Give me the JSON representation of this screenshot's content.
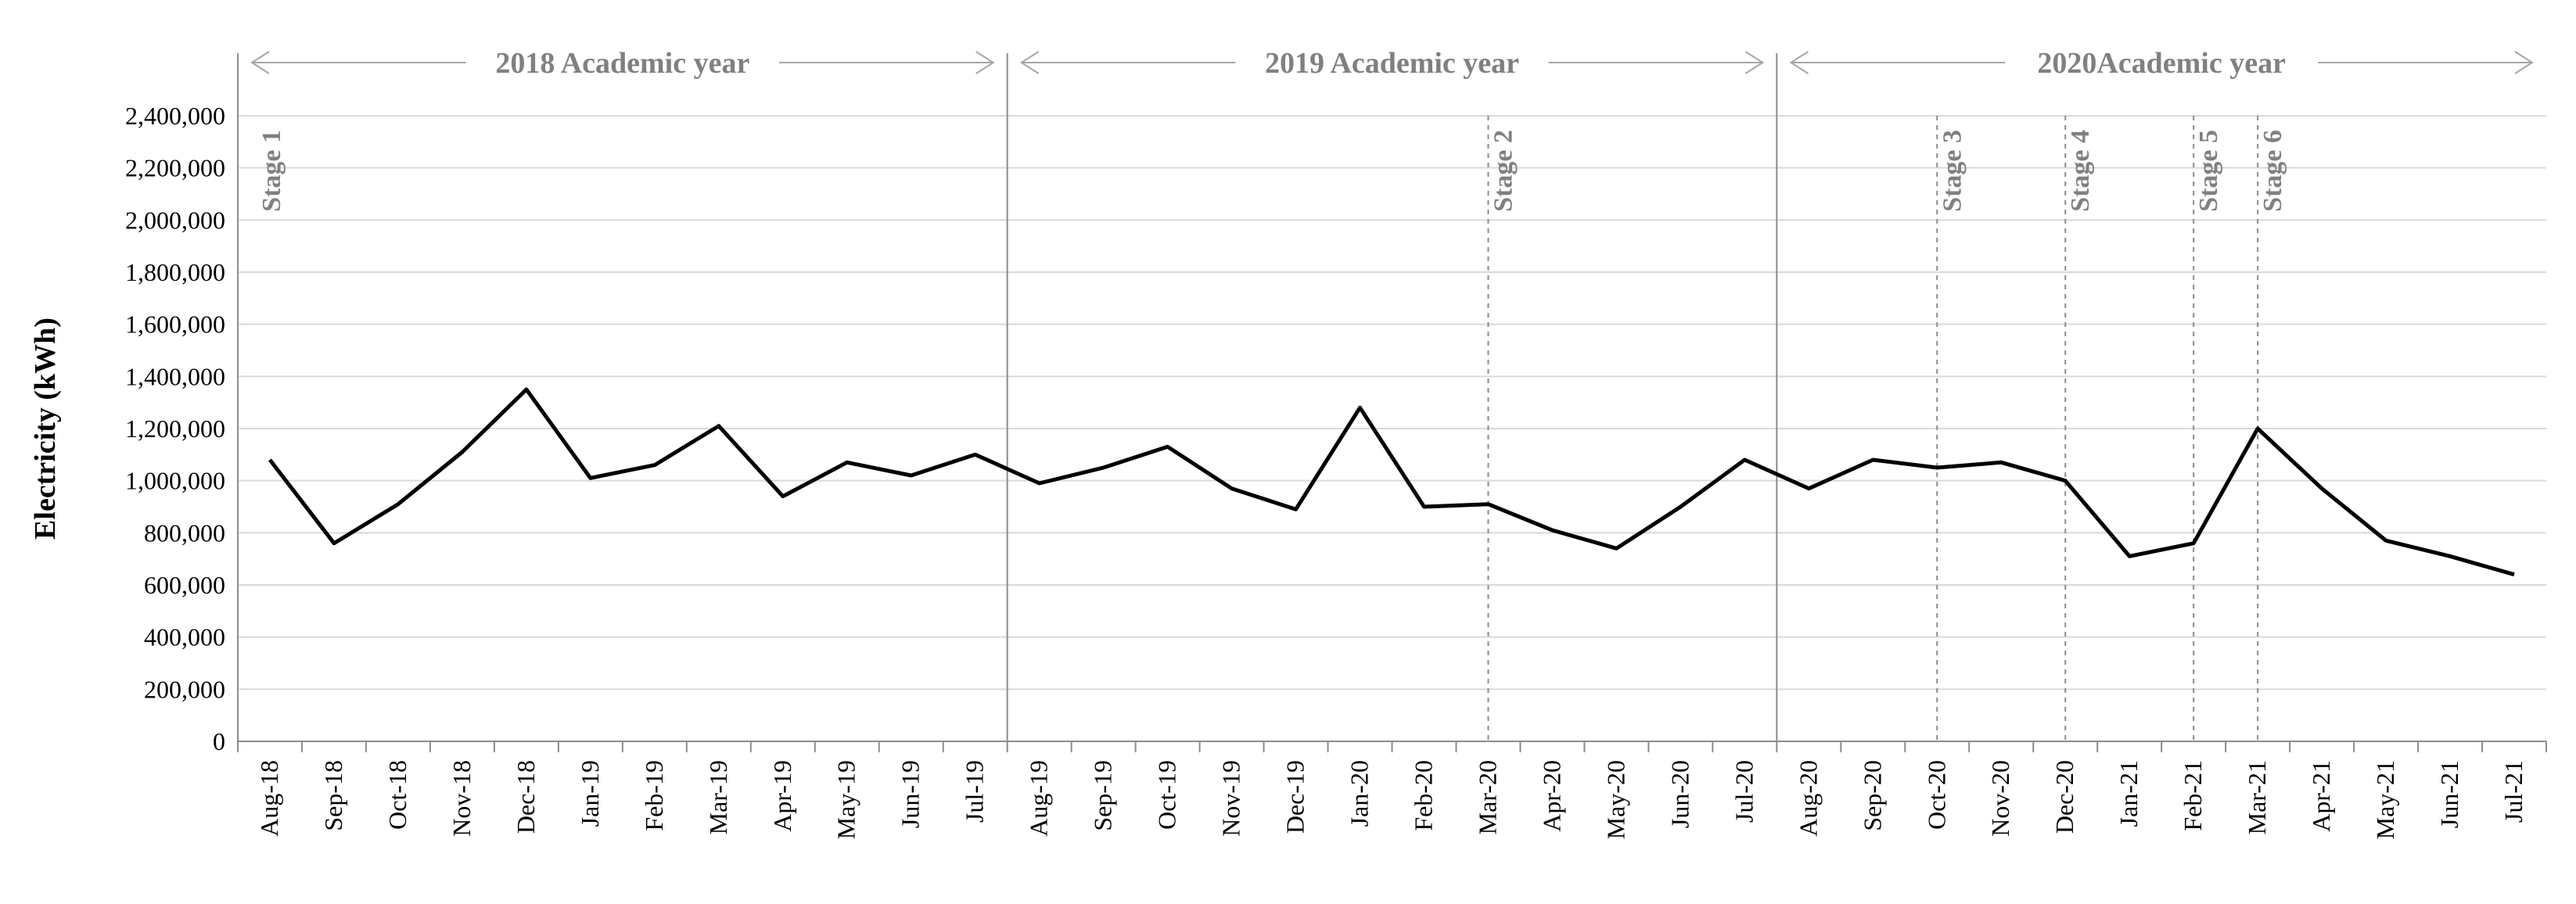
{
  "chart_data": {
    "type": "line",
    "title": "",
    "xlabel": "",
    "ylabel": "Electricity (kWh)",
    "ylim": [
      0,
      2400000
    ],
    "yticks": [
      0,
      200000,
      400000,
      600000,
      800000,
      1000000,
      1200000,
      1400000,
      1600000,
      1800000,
      2000000,
      2200000,
      2400000
    ],
    "ytick_labels": [
      "0",
      "200,000",
      "400,000",
      "600,000",
      "800,000",
      "1,000,000",
      "1,200,000",
      "1,400,000",
      "1,600,000",
      "1,800,000",
      "2,000,000",
      "2,200,000",
      "2,400,000"
    ],
    "grid": true,
    "categories": [
      "Aug-18",
      "Sep-18",
      "Oct-18",
      "Nov-18",
      "Dec-18",
      "Jan-19",
      "Feb-19",
      "Mar-19",
      "Apr-19",
      "May-19",
      "Jun-19",
      "Jul-19",
      "Aug-19",
      "Sep-19",
      "Oct-19",
      "Nov-19",
      "Dec-19",
      "Jan-20",
      "Feb-20",
      "Mar-20",
      "Apr-20",
      "May-20",
      "Jun-20",
      "Jul-20",
      "Aug-20",
      "Sep-20",
      "Oct-20",
      "Nov-20",
      "Dec-20",
      "Jan-21",
      "Feb-21",
      "Mar-21",
      "Apr-21",
      "May-21",
      "Jun-21",
      "Jul-21"
    ],
    "series": [
      {
        "values": [
          1080000,
          760000,
          910000,
          1110000,
          1350000,
          1010000,
          1060000,
          1210000,
          940000,
          1070000,
          1020000,
          1100000,
          990000,
          1050000,
          1130000,
          970000,
          890000,
          1280000,
          900000,
          910000,
          810000,
          740000,
          900000,
          1080000,
          970000,
          1080000,
          1050000,
          1070000,
          1000000,
          710000,
          760000,
          1200000,
          970000,
          770000,
          710000,
          640000
        ],
        "color": "#000000"
      }
    ],
    "academic_years": [
      {
        "label": "2018 Academic year",
        "start": "Aug-18",
        "end": "Jul-19"
      },
      {
        "label": "2019 Academic year",
        "start": "Aug-19",
        "end": "Jul-20"
      },
      {
        "label": "2020Academic year",
        "start": "Aug-20",
        "end": "Jul-21"
      }
    ],
    "stages": [
      {
        "label": "Stage 1",
        "at": "Aug-18",
        "line": false
      },
      {
        "label": "Stage 2",
        "at": "Mar-20",
        "line": true
      },
      {
        "label": "Stage 3",
        "at": "Oct-20",
        "line": true
      },
      {
        "label": "Stage 4",
        "at": "Dec-20",
        "line": true
      },
      {
        "label": "Stage 5",
        "at": "Feb-21",
        "line": true
      },
      {
        "label": "Stage 6",
        "at": "Mar-21",
        "line": true
      }
    ]
  }
}
